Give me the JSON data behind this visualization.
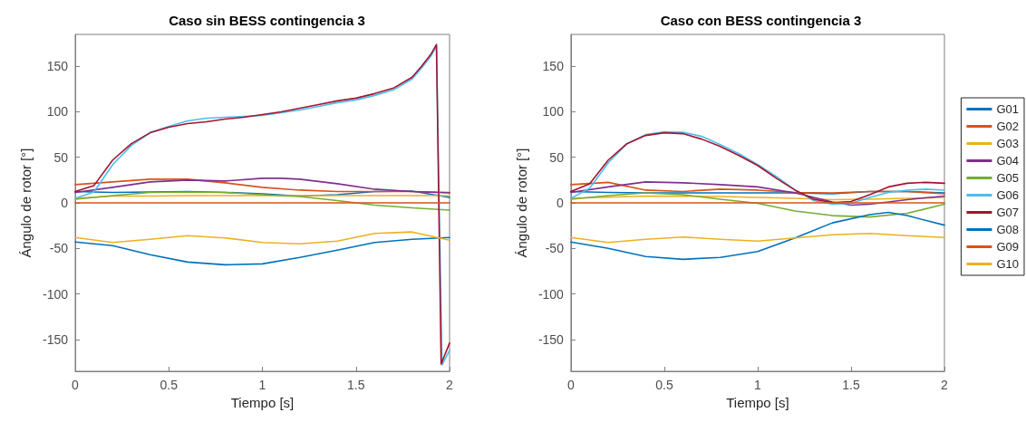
{
  "chart_data": [
    {
      "type": "line",
      "title": "Caso sin BESS contingencia 3",
      "xlabel": "Tiempo [s]",
      "ylabel": "Ángulo de rotor [°]",
      "xlim": [
        0,
        2
      ],
      "xticks": [
        0,
        0.5,
        1,
        1.5,
        2
      ],
      "ylim": [
        -185,
        185
      ],
      "yticks": [
        -150,
        -100,
        -50,
        0,
        50,
        100,
        150
      ],
      "grid": false,
      "legend": false,
      "marker": "none",
      "line_style": "solid",
      "series": [
        {
          "color": "#0072bd",
          "x": [
            0,
            0.2,
            0.4,
            0.6,
            0.8,
            1.0,
            1.2,
            1.4,
            1.6,
            1.8,
            2.0
          ],
          "values": [
            12.5,
            11.5,
            12,
            12.5,
            11.5,
            10,
            7.5,
            9,
            12.5,
            13,
            6
          ]
        },
        {
          "color": "#d95319",
          "x": [
            0,
            0.2,
            0.4,
            0.6,
            0.8,
            1.0,
            1.2,
            1.4,
            1.6,
            1.8,
            2.0
          ],
          "values": [
            20,
            23,
            26,
            26,
            22,
            17,
            14,
            12.5,
            12.5,
            12.5,
            11.5
          ]
        },
        {
          "color": "#edb120",
          "x": [
            0,
            0.2,
            0.4,
            0.6,
            0.8,
            1.0,
            1.2,
            1.4,
            1.6,
            1.8,
            2.0
          ],
          "values": [
            5,
            7.5,
            7.5,
            8,
            8,
            8,
            8,
            8,
            8,
            8,
            8
          ]
        },
        {
          "color": "#7e2f8e",
          "x": [
            0,
            0.2,
            0.4,
            0.6,
            0.8,
            1.0,
            1.1,
            1.2,
            1.4,
            1.6,
            1.8,
            2.0
          ],
          "values": [
            11.5,
            17,
            23,
            25,
            24,
            27,
            27,
            26,
            21,
            15,
            12.5,
            11
          ]
        },
        {
          "color": "#77ac30",
          "x": [
            0,
            0.2,
            0.4,
            0.6,
            0.8,
            1.0,
            1.2,
            1.4,
            1.6,
            1.8,
            2.0
          ],
          "values": [
            4,
            8,
            11.5,
            12,
            11.5,
            9,
            7,
            2.5,
            -2.5,
            -5.5,
            -8
          ]
        },
        {
          "color": "#4dbeee",
          "x": [
            0,
            0.1,
            0.2,
            0.3,
            0.4,
            0.5,
            0.6,
            0.7,
            0.8,
            0.9,
            1.0,
            1.1,
            1.2,
            1.3,
            1.4,
            1.5,
            1.6,
            1.7,
            1.8,
            1.85,
            1.9,
            1.93,
            1.96,
            2.0
          ],
          "values": [
            5,
            12,
            42,
            63,
            77,
            84,
            90,
            93,
            94,
            95,
            96,
            99,
            102,
            106,
            110,
            113,
            118,
            124,
            136,
            148,
            161,
            172,
            -178,
            -162
          ]
        },
        {
          "color": "#a2142f",
          "x": [
            0,
            0.1,
            0.2,
            0.3,
            0.4,
            0.5,
            0.6,
            0.7,
            0.8,
            0.9,
            1.0,
            1.1,
            1.2,
            1.3,
            1.4,
            1.5,
            1.6,
            1.7,
            1.8,
            1.85,
            1.9,
            1.93,
            1.955,
            2.0
          ],
          "values": [
            12.5,
            19,
            47,
            65,
            77,
            83,
            87,
            89,
            92,
            94,
            97,
            100,
            104,
            108,
            112,
            115,
            120,
            126,
            138,
            150,
            163,
            174,
            -177,
            -154
          ]
        },
        {
          "color": "#0072bd",
          "x": [
            0,
            0.2,
            0.4,
            0.6,
            0.8,
            1.0,
            1.2,
            1.4,
            1.6,
            1.8,
            2.0
          ],
          "values": [
            -43,
            -47,
            -57,
            -65,
            -68,
            -67,
            -60,
            -52,
            -43.5,
            -40,
            -38
          ]
        },
        {
          "color": "#d95319",
          "x": [
            0,
            2.0
          ],
          "values": [
            0,
            0
          ]
        },
        {
          "color": "#edb120",
          "x": [
            0,
            0.2,
            0.4,
            0.6,
            0.8,
            1.0,
            1.2,
            1.4,
            1.6,
            1.8,
            2.0
          ],
          "values": [
            -38,
            -43.5,
            -40,
            -36,
            -38.5,
            -43.5,
            -45,
            -42,
            -33.5,
            -32,
            -41
          ]
        }
      ]
    },
    {
      "type": "line",
      "title": "Caso con BESS contingencia 3",
      "xlabel": "Tiempo [s]",
      "ylabel": "Ángulo de rotor [°]",
      "xlim": [
        0,
        2
      ],
      "xticks": [
        0,
        0.5,
        1,
        1.5,
        2
      ],
      "ylim": [
        -185,
        185
      ],
      "yticks": [
        -150,
        -100,
        -50,
        0,
        50,
        100,
        150
      ],
      "grid": false,
      "legend": "right",
      "marker": "none",
      "line_style": "solid",
      "series": [
        {
          "name": "G01",
          "color": "#0072bd",
          "x": [
            0,
            0.2,
            0.4,
            0.6,
            0.8,
            1.0,
            1.2,
            1.4,
            1.6,
            1.8,
            2.0
          ],
          "values": [
            12.5,
            11.5,
            11,
            11,
            11,
            11,
            11,
            10,
            12.5,
            12.5,
            11
          ]
        },
        {
          "name": "G02",
          "color": "#d95319",
          "x": [
            0,
            0.2,
            0.4,
            0.6,
            0.8,
            1.0,
            1.2,
            1.4,
            1.6,
            1.8,
            2.0
          ],
          "values": [
            20,
            22.5,
            14,
            12.5,
            15,
            14,
            11.5,
            11,
            12.5,
            12.5,
            10
          ]
        },
        {
          "name": "G03",
          "color": "#edb120",
          "x": [
            0,
            0.4,
            0.8,
            1.2,
            1.4,
            1.6,
            2.0
          ],
          "values": [
            5,
            7.5,
            7,
            5,
            3.5,
            4,
            6
          ]
        },
        {
          "name": "G04",
          "color": "#7e2f8e",
          "x": [
            0,
            0.2,
            0.4,
            0.6,
            0.8,
            1.0,
            1.2,
            1.4,
            1.5,
            1.6,
            1.8,
            2.0
          ],
          "values": [
            11.5,
            17.5,
            23,
            22,
            20,
            17.5,
            11,
            1,
            -2.5,
            -1.5,
            3.5,
            7.5
          ]
        },
        {
          "name": "G05",
          "color": "#77ac30",
          "x": [
            0,
            0.2,
            0.4,
            0.6,
            0.8,
            1.0,
            1.2,
            1.4,
            1.6,
            1.8,
            2.0
          ],
          "values": [
            4,
            8,
            11,
            9,
            4,
            -0.5,
            -9,
            -14,
            -15.5,
            -11.5,
            -1.5
          ]
        },
        {
          "name": "G06",
          "color": "#4dbeee",
          "x": [
            0,
            0.1,
            0.2,
            0.3,
            0.4,
            0.5,
            0.6,
            0.7,
            0.8,
            0.9,
            1.0,
            1.1,
            1.2,
            1.3,
            1.4,
            1.5,
            1.6,
            1.7,
            1.8,
            1.9,
            2.0
          ],
          "values": [
            5,
            16,
            44,
            65,
            75,
            78,
            77.5,
            73,
            64,
            54,
            42,
            29,
            14,
            2.5,
            -1.5,
            -0.5,
            6,
            11.5,
            14,
            15,
            14
          ]
        },
        {
          "name": "G07",
          "color": "#a2142f",
          "x": [
            0,
            0.1,
            0.2,
            0.3,
            0.4,
            0.5,
            0.6,
            0.7,
            0.8,
            0.9,
            1.0,
            1.1,
            1.2,
            1.3,
            1.4,
            1.5,
            1.6,
            1.7,
            1.8,
            1.9,
            2.0
          ],
          "values": [
            12.5,
            21,
            47,
            65,
            74,
            77,
            76,
            70,
            62,
            52,
            41,
            27,
            14,
            4,
            0.3,
            1.5,
            9,
            17.5,
            21.5,
            22.5,
            21.5
          ]
        },
        {
          "name": "G08",
          "color": "#0072bd",
          "x": [
            0,
            0.2,
            0.4,
            0.6,
            0.8,
            1.0,
            1.2,
            1.4,
            1.6,
            1.7,
            1.8,
            2.0
          ],
          "values": [
            -43,
            -50,
            -59,
            -62,
            -60,
            -53.5,
            -38.5,
            -22,
            -13,
            -10.5,
            -14,
            -24.5
          ]
        },
        {
          "name": "G09",
          "color": "#d95319",
          "x": [
            0,
            2.0
          ],
          "values": [
            0,
            0
          ]
        },
        {
          "name": "G10",
          "color": "#edb120",
          "x": [
            0,
            0.2,
            0.4,
            0.6,
            0.8,
            1.0,
            1.2,
            1.4,
            1.6,
            1.8,
            2.0
          ],
          "values": [
            -38,
            -43.5,
            -40,
            -37.5,
            -40,
            -42,
            -38.5,
            -35,
            -33.5,
            -36,
            -38
          ]
        }
      ]
    }
  ]
}
